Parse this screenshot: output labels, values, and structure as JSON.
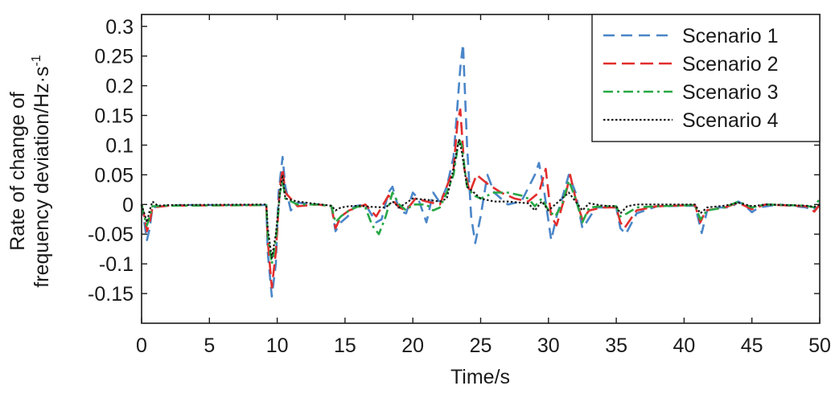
{
  "chart_data": {
    "type": "line",
    "title": "",
    "xlabel": "Time/s",
    "ylabel_line1": "Rate of change of",
    "ylabel_line2": "frequency deviation/Hz·s",
    "ylabel_sup": "-1",
    "xlim": [
      0,
      50
    ],
    "ylim": [
      -0.2,
      0.32
    ],
    "x_ticks": [
      0,
      5,
      10,
      15,
      20,
      25,
      30,
      35,
      40,
      45,
      50
    ],
    "x_tick_labels": [
      "0",
      "5",
      "10",
      "15",
      "20",
      "25",
      "30",
      "35",
      "40",
      "45",
      "50"
    ],
    "y_ticks": [
      -0.15,
      -0.1,
      -0.05,
      0,
      0.05,
      0.1,
      0.15,
      0.2,
      0.25,
      0.3
    ],
    "y_tick_labels": [
      "-0.15",
      "-0.1",
      "-0.05",
      "0",
      "0.05",
      "0.1",
      "0.15",
      "0.2",
      "0.25",
      "0.3"
    ],
    "grid": false,
    "legend_position": "top-right",
    "series": [
      {
        "name": "Scenario 1",
        "color": "#4a86c8",
        "style": "dashed",
        "points": [
          [
            0,
            0
          ],
          [
            0.2,
            -0.03
          ],
          [
            0.4,
            -0.06
          ],
          [
            0.6,
            -0.04
          ],
          [
            0.8,
            -0.005
          ],
          [
            1.5,
            -0.003
          ],
          [
            3,
            -0.001
          ],
          [
            9.2,
            -0.001
          ],
          [
            9.3,
            -0.08
          ],
          [
            9.6,
            -0.155
          ],
          [
            9.9,
            -0.1
          ],
          [
            10.1,
            0.02
          ],
          [
            10.4,
            0.08
          ],
          [
            10.6,
            0.03
          ],
          [
            11,
            -0.01
          ],
          [
            11.5,
            0.003
          ],
          [
            13,
            0
          ],
          [
            14,
            -0.003
          ],
          [
            14.3,
            -0.045
          ],
          [
            14.7,
            -0.03
          ],
          [
            15.2,
            -0.02
          ],
          [
            15.7,
            -0.003
          ],
          [
            16.5,
            0
          ],
          [
            17.3,
            -0.03
          ],
          [
            17.7,
            -0.025
          ],
          [
            18.2,
            0.02
          ],
          [
            18.5,
            0.03
          ],
          [
            19,
            -0.01
          ],
          [
            19.5,
            -0.015
          ],
          [
            20,
            0.02
          ],
          [
            20.4,
            0.01
          ],
          [
            21,
            -0.03
          ],
          [
            21.5,
            0.02
          ],
          [
            22,
            0.003
          ],
          [
            22.5,
            0.03
          ],
          [
            23,
            0.08
          ],
          [
            23.5,
            0.23
          ],
          [
            23.7,
            0.27
          ],
          [
            24,
            0.1
          ],
          [
            24.3,
            -0.02
          ],
          [
            24.6,
            -0.065
          ],
          [
            25,
            -0.02
          ],
          [
            25.5,
            0.05
          ],
          [
            26,
            0.02
          ],
          [
            27,
            0
          ],
          [
            28,
            0.005
          ],
          [
            29,
            0.05
          ],
          [
            29.3,
            0.07
          ],
          [
            29.7,
            0.02
          ],
          [
            30.2,
            -0.06
          ],
          [
            30.6,
            -0.02
          ],
          [
            31,
            0.01
          ],
          [
            31.5,
            0.05
          ],
          [
            32,
            0.02
          ],
          [
            32.5,
            -0.04
          ],
          [
            32.8,
            -0.03
          ],
          [
            33.5,
            -0.005
          ],
          [
            35,
            -0.005
          ],
          [
            35.3,
            -0.04
          ],
          [
            35.7,
            -0.05
          ],
          [
            36.5,
            -0.015
          ],
          [
            38,
            -0.003
          ],
          [
            40.8,
            -0.002
          ],
          [
            41,
            -0.02
          ],
          [
            41.3,
            -0.048
          ],
          [
            41.7,
            -0.01
          ],
          [
            42.5,
            -0.005
          ],
          [
            43.5,
            -0.005
          ],
          [
            44,
            0.005
          ],
          [
            44.5,
            -0.002
          ],
          [
            45,
            -0.013
          ],
          [
            45.5,
            -0.005
          ],
          [
            47,
            0
          ],
          [
            49,
            -0.005
          ],
          [
            49.5,
            -0.01
          ],
          [
            50,
            -0.002
          ]
        ]
      },
      {
        "name": "Scenario 2",
        "color": "#e22d2d",
        "style": "dash-long",
        "points": [
          [
            0,
            0
          ],
          [
            0.2,
            -0.02
          ],
          [
            0.4,
            -0.045
          ],
          [
            0.6,
            -0.03
          ],
          [
            0.8,
            -0.005
          ],
          [
            2,
            -0.002
          ],
          [
            9.2,
            -0.001
          ],
          [
            9.3,
            -0.06
          ],
          [
            9.6,
            -0.14
          ],
          [
            9.9,
            -0.08
          ],
          [
            10.2,
            0.03
          ],
          [
            10.4,
            0.06
          ],
          [
            10.6,
            0.02
          ],
          [
            11.5,
            -0.003
          ],
          [
            13,
            0
          ],
          [
            14,
            -0.003
          ],
          [
            14.3,
            -0.04
          ],
          [
            14.7,
            -0.02
          ],
          [
            15.3,
            -0.01
          ],
          [
            16.5,
            0
          ],
          [
            17.3,
            -0.02
          ],
          [
            18.2,
            0.015
          ],
          [
            19,
            -0.005
          ],
          [
            19.5,
            -0.01
          ],
          [
            20.2,
            0.01
          ],
          [
            21,
            0.005
          ],
          [
            22,
            0
          ],
          [
            23,
            0.06
          ],
          [
            23.3,
            0.14
          ],
          [
            23.5,
            0.16
          ],
          [
            23.8,
            0.06
          ],
          [
            24.2,
            0.02
          ],
          [
            24.7,
            0.05
          ],
          [
            25.5,
            0.035
          ],
          [
            26.5,
            0.02
          ],
          [
            27.5,
            0.01
          ],
          [
            28.5,
            0.005
          ],
          [
            29.3,
            0.02
          ],
          [
            29.8,
            0.06
          ],
          [
            30.2,
            -0.02
          ],
          [
            30.6,
            -0.035
          ],
          [
            31.3,
            0.02
          ],
          [
            31.6,
            0.05
          ],
          [
            32,
            0.01
          ],
          [
            32.5,
            -0.025
          ],
          [
            33,
            -0.01
          ],
          [
            34,
            -0.005
          ],
          [
            35,
            -0.005
          ],
          [
            35.3,
            -0.03
          ],
          [
            35.6,
            -0.04
          ],
          [
            36.5,
            -0.01
          ],
          [
            38,
            -0.003
          ],
          [
            40.8,
            -0.001
          ],
          [
            41.2,
            -0.03
          ],
          [
            41.6,
            -0.01
          ],
          [
            43,
            -0.005
          ],
          [
            44,
            0.003
          ],
          [
            45,
            -0.008
          ],
          [
            46,
            0
          ],
          [
            49,
            -0.003
          ],
          [
            49.6,
            -0.012
          ],
          [
            50,
            0
          ]
        ]
      },
      {
        "name": "Scenario 3",
        "color": "#27a845",
        "style": "dashdot",
        "points": [
          [
            0,
            0
          ],
          [
            0.2,
            -0.02
          ],
          [
            0.4,
            -0.035
          ],
          [
            0.6,
            -0.02
          ],
          [
            0.8,
            -0.003
          ],
          [
            2,
            -0.002
          ],
          [
            9.2,
            -0.001
          ],
          [
            9.3,
            -0.05
          ],
          [
            9.6,
            -0.1
          ],
          [
            9.9,
            -0.06
          ],
          [
            10.2,
            0.02
          ],
          [
            10.4,
            0.04
          ],
          [
            10.6,
            0.01
          ],
          [
            11.5,
            0
          ],
          [
            13,
            0
          ],
          [
            14,
            -0.003
          ],
          [
            14.3,
            -0.03
          ],
          [
            14.7,
            -0.02
          ],
          [
            15.3,
            -0.01
          ],
          [
            16,
            -0.003
          ],
          [
            16.5,
            -0.005
          ],
          [
            17,
            -0.035
          ],
          [
            17.5,
            -0.05
          ],
          [
            18,
            -0.02
          ],
          [
            18.5,
            0.02
          ],
          [
            19,
            0
          ],
          [
            19.5,
            -0.01
          ],
          [
            20,
            0
          ],
          [
            21,
            0
          ],
          [
            21.5,
            -0.01
          ],
          [
            22,
            -0.005
          ],
          [
            22.5,
            0.02
          ],
          [
            23,
            0.05
          ],
          [
            23.4,
            0.11
          ],
          [
            23.6,
            0.1
          ],
          [
            24,
            0.03
          ],
          [
            24.5,
            0.015
          ],
          [
            25,
            0.01
          ],
          [
            26,
            0.02
          ],
          [
            27,
            0.02
          ],
          [
            28,
            0.015
          ],
          [
            28.5,
            0.01
          ],
          [
            29,
            -0.003
          ],
          [
            29.5,
            0.01
          ],
          [
            30,
            -0.01
          ],
          [
            30.5,
            -0.02
          ],
          [
            31,
            0
          ],
          [
            31.5,
            0.04
          ],
          [
            32,
            0.01
          ],
          [
            32.5,
            -0.03
          ],
          [
            33,
            -0.005
          ],
          [
            34,
            -0.003
          ],
          [
            35,
            -0.003
          ],
          [
            35.3,
            -0.02
          ],
          [
            35.8,
            -0.015
          ],
          [
            36.5,
            -0.005
          ],
          [
            38,
            -0.003
          ],
          [
            40.8,
            -0.001
          ],
          [
            41.2,
            -0.025
          ],
          [
            41.7,
            -0.01
          ],
          [
            43,
            -0.005
          ],
          [
            44,
            0.005
          ],
          [
            45,
            -0.005
          ],
          [
            46,
            0
          ],
          [
            49,
            -0.002
          ],
          [
            49.6,
            -0.005
          ],
          [
            50,
            0.01
          ]
        ]
      },
      {
        "name": "Scenario 4",
        "color": "#1a1a1a",
        "style": "dotted",
        "points": [
          [
            0,
            0
          ],
          [
            0.2,
            -0.015
          ],
          [
            0.4,
            -0.03
          ],
          [
            0.6,
            -0.01
          ],
          [
            0.8,
            0.005
          ],
          [
            1.2,
            -0.002
          ],
          [
            2,
            -0.001
          ],
          [
            9.2,
            0
          ],
          [
            9.3,
            -0.04
          ],
          [
            9.6,
            -0.09
          ],
          [
            9.9,
            -0.05
          ],
          [
            10.2,
            0.02
          ],
          [
            10.4,
            0.05
          ],
          [
            10.6,
            0.01
          ],
          [
            11.5,
            0.005
          ],
          [
            12.5,
            0.002
          ],
          [
            14,
            -0.002
          ],
          [
            14.3,
            -0.01
          ],
          [
            14.7,
            -0.005
          ],
          [
            15.3,
            -0.003
          ],
          [
            16,
            -0.002
          ],
          [
            17,
            -0.004
          ],
          [
            18,
            -0.005
          ],
          [
            18.5,
            0.005
          ],
          [
            19,
            -0.005
          ],
          [
            20,
            0.01
          ],
          [
            21,
            0.008
          ],
          [
            22,
            0.005
          ],
          [
            22.5,
            0.01
          ],
          [
            23,
            0.06
          ],
          [
            23.4,
            0.11
          ],
          [
            23.6,
            0.09
          ],
          [
            24,
            0.03
          ],
          [
            24.5,
            0.02
          ],
          [
            25,
            0.01
          ],
          [
            26,
            0.005
          ],
          [
            27,
            0.005
          ],
          [
            28,
            0.003
          ],
          [
            28.5,
            0.002
          ],
          [
            29,
            -0.01
          ],
          [
            29.5,
            0.005
          ],
          [
            30,
            -0.01
          ],
          [
            30.5,
            0
          ],
          [
            31,
            0.01
          ],
          [
            31.5,
            0.02
          ],
          [
            32,
            0.005
          ],
          [
            32.5,
            -0.01
          ],
          [
            33,
            0.002
          ],
          [
            34,
            -0.002
          ],
          [
            35,
            -0.003
          ],
          [
            35.3,
            -0.015
          ],
          [
            35.8,
            -0.003
          ],
          [
            36.5,
            0
          ],
          [
            38,
            0
          ],
          [
            40.8,
            0
          ],
          [
            41.2,
            -0.015
          ],
          [
            41.7,
            -0.005
          ],
          [
            43,
            -0.002
          ],
          [
            44,
            0.003
          ],
          [
            45,
            -0.003
          ],
          [
            46,
            0
          ],
          [
            49,
            -0.002
          ],
          [
            49.6,
            -0.004
          ],
          [
            50,
            0
          ]
        ]
      }
    ]
  }
}
